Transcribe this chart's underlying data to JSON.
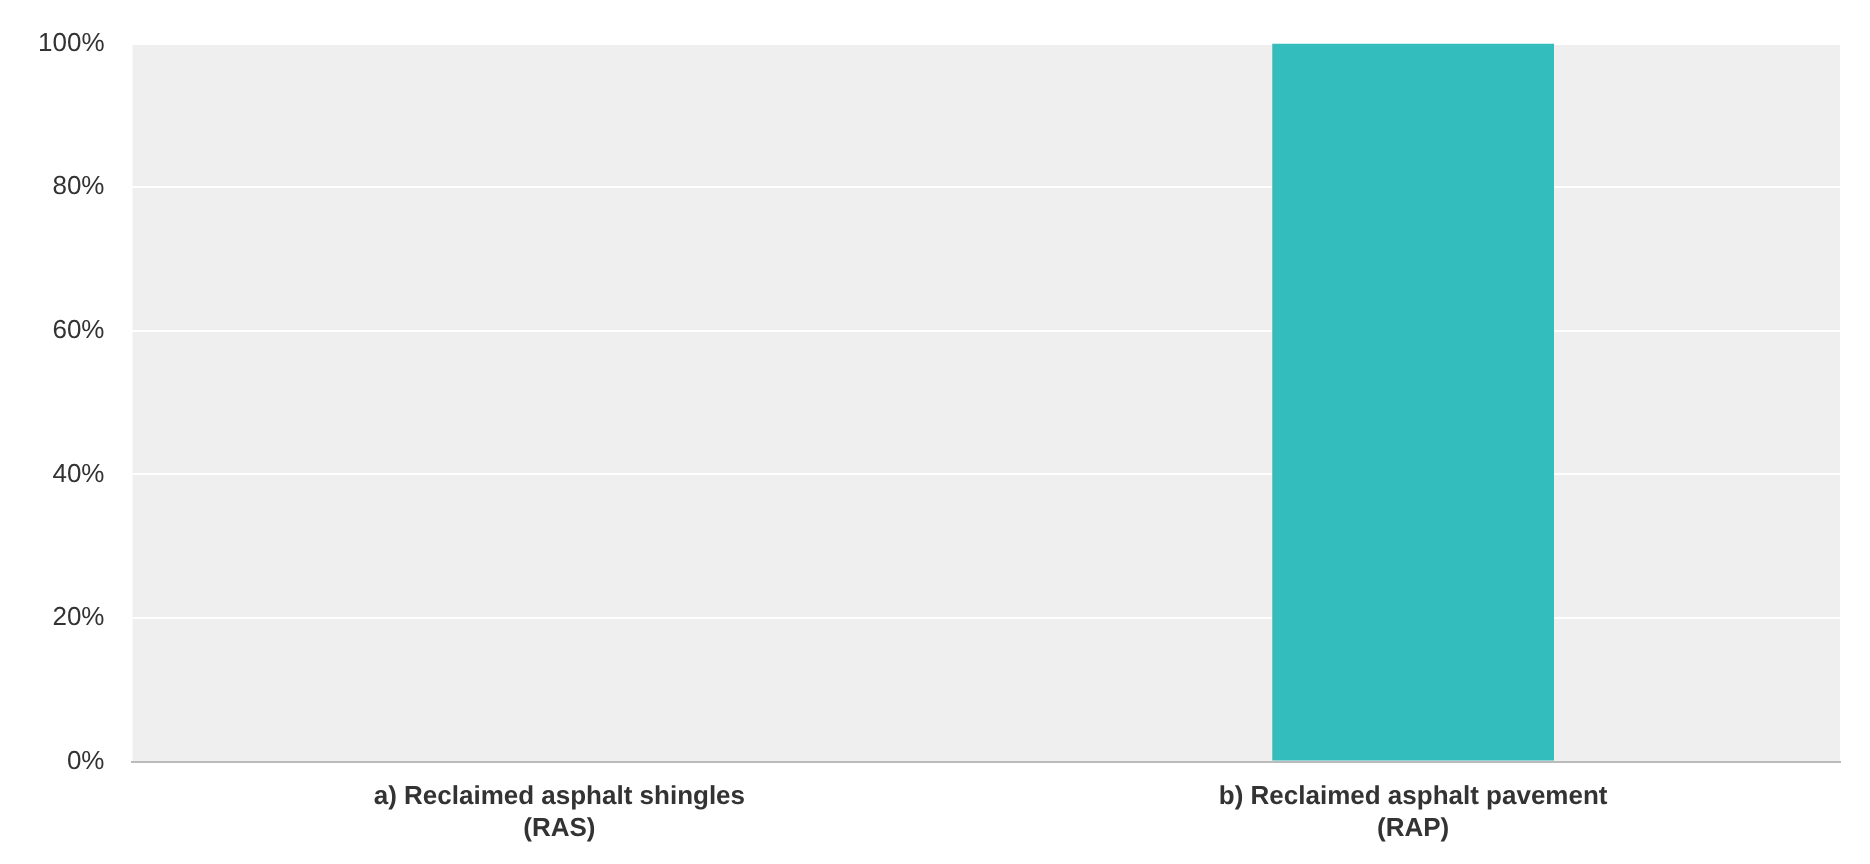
{
  "chart_data": {
    "type": "bar",
    "categories": [
      "a) Reclaimed asphalt shingles\n(RAS)",
      "b) Reclaimed asphalt pavement\n(RAP)"
    ],
    "values": [
      0,
      100
    ],
    "color": "#33bdbd",
    "ylim": [
      0,
      100
    ],
    "yticks": [
      {
        "value": 0,
        "label": "0%"
      },
      {
        "value": 20,
        "label": "20%"
      },
      {
        "value": 40,
        "label": "40%"
      },
      {
        "value": 60,
        "label": "60%"
      },
      {
        "value": 80,
        "label": "80%"
      },
      {
        "value": 100,
        "label": "100%"
      }
    ],
    "grid": "y",
    "legend": false
  }
}
